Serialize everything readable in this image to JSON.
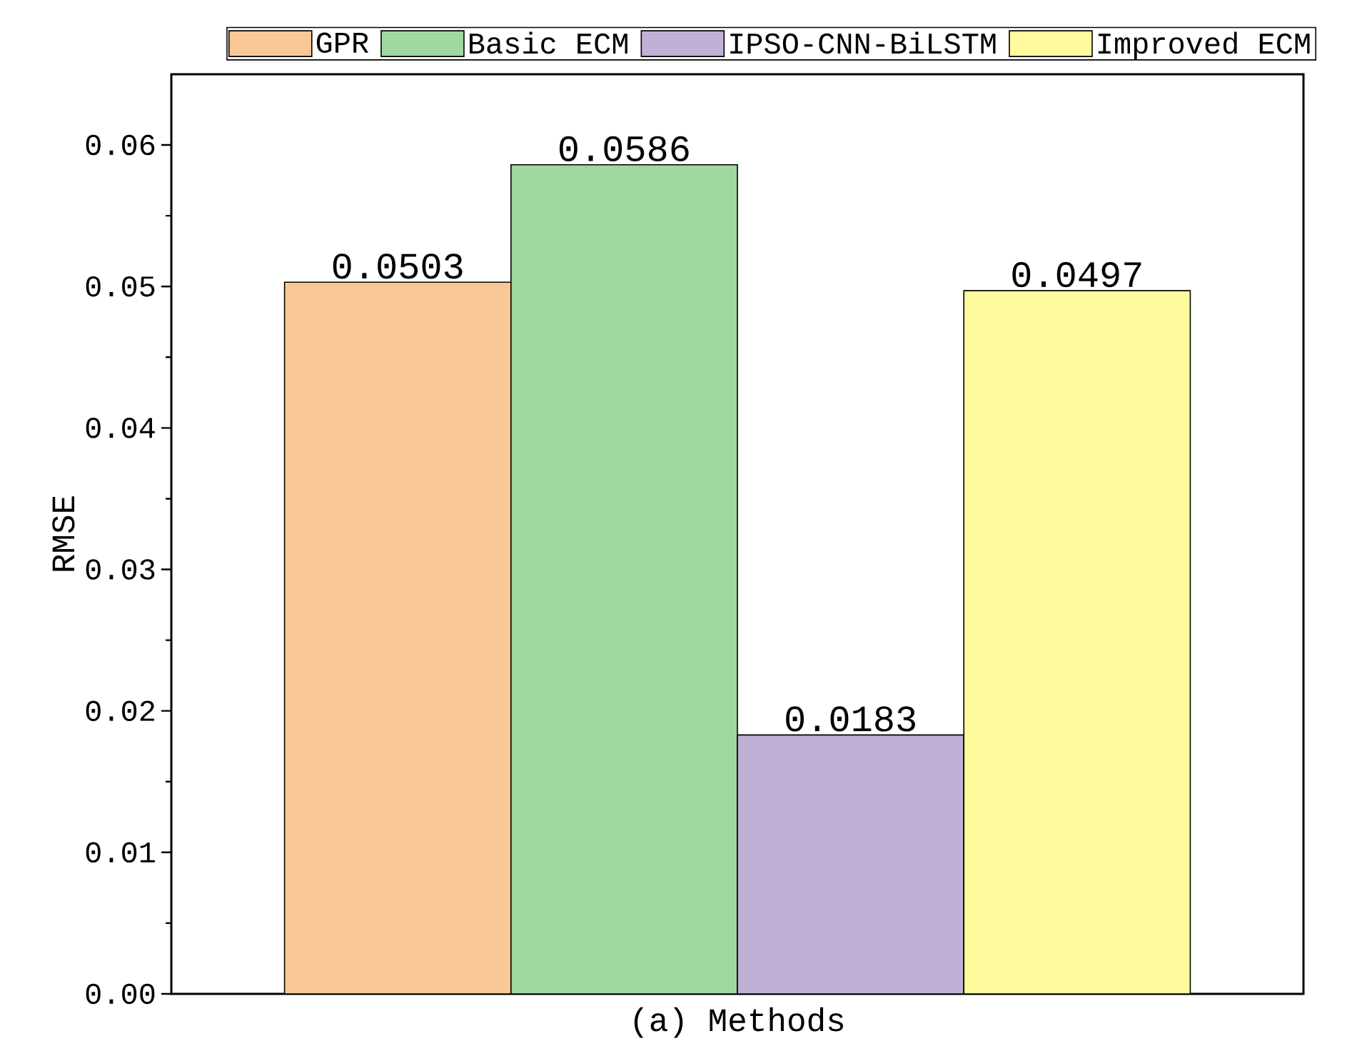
{
  "chart_data": {
    "type": "bar",
    "xlabel": "(a) Methods",
    "ylabel": "RMSE",
    "categories": [
      null
    ],
    "series": [
      {
        "name": "GPR",
        "color": "#f9c896",
        "values": [
          0.0503
        ]
      },
      {
        "name": "Basic ECM",
        "color": "#a0d89f",
        "values": [
          0.0586
        ]
      },
      {
        "name": "IPSO-CNN-BiLSTM",
        "color": "#c1b0d6",
        "values": [
          0.0183
        ]
      },
      {
        "name": "Improved ECM",
        "color": "#fffb9c",
        "values": [
          0.0497
        ]
      }
    ],
    "ylim": [
      0,
      0.065
    ],
    "yticks": [
      {
        "value": 0,
        "label": "0.00"
      },
      0.01,
      0.02,
      0.03,
      0.04,
      0.05,
      0.06
    ],
    "data_labels": true,
    "legend": "top",
    "grid": false
  }
}
